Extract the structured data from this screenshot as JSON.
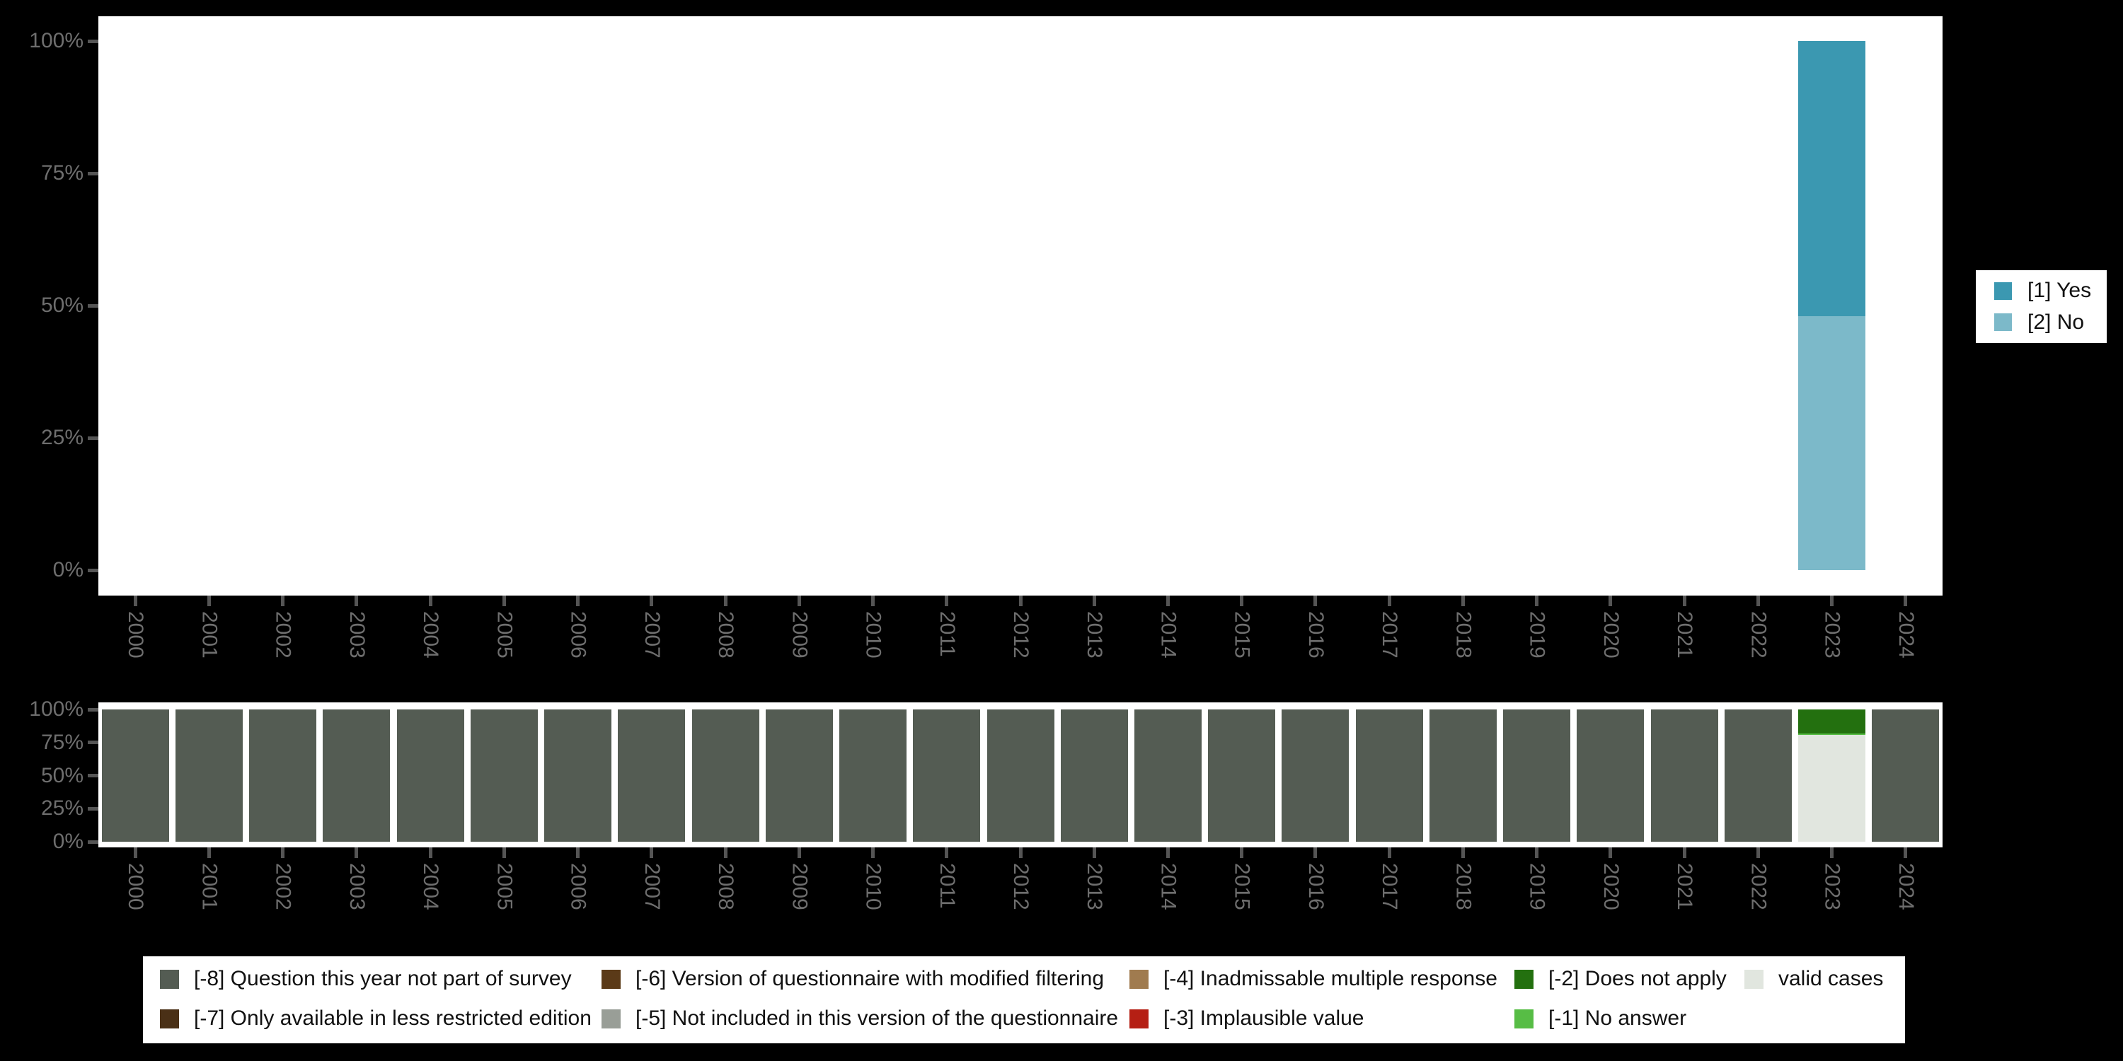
{
  "figure": {
    "background_color": "#000000",
    "plot_background_color": "#FFFFFF",
    "axis_text_color": "#6e6e6e"
  },
  "chart_data": [
    {
      "type": "bar",
      "stacked": true,
      "title": "",
      "xlabel": "",
      "ylabel": "",
      "grid": false,
      "legend_position": "right",
      "ylim": [
        0,
        100
      ],
      "ytick_labels": [
        "0%",
        "25%",
        "50%",
        "75%",
        "100%"
      ],
      "ytick_values": [
        0,
        25,
        50,
        75,
        100
      ],
      "categories": [
        "2000",
        "2001",
        "2002",
        "2003",
        "2004",
        "2005",
        "2006",
        "2007",
        "2008",
        "2009",
        "2010",
        "2011",
        "2012",
        "2013",
        "2014",
        "2015",
        "2016",
        "2017",
        "2018",
        "2019",
        "2020",
        "2021",
        "2022",
        "2023",
        "2024"
      ],
      "series": [
        {
          "name": "[1] Yes",
          "color": "#3B98B1",
          "values": [
            0,
            0,
            0,
            0,
            0,
            0,
            0,
            0,
            0,
            0,
            0,
            0,
            0,
            0,
            0,
            0,
            0,
            0,
            0,
            0,
            0,
            0,
            0,
            52,
            0
          ]
        },
        {
          "name": "[2] No",
          "color": "#7CB9C9",
          "values": [
            0,
            0,
            0,
            0,
            0,
            0,
            0,
            0,
            0,
            0,
            0,
            0,
            0,
            0,
            0,
            0,
            0,
            0,
            0,
            0,
            0,
            0,
            0,
            48,
            0
          ]
        }
      ]
    },
    {
      "type": "bar",
      "stacked": true,
      "title": "",
      "xlabel": "",
      "ylabel": "",
      "grid": false,
      "legend_position": "bottom",
      "ylim": [
        0,
        100
      ],
      "ytick_labels": [
        "0%",
        "25%",
        "50%",
        "75%",
        "100%"
      ],
      "ytick_values": [
        0,
        25,
        50,
        75,
        100
      ],
      "categories": [
        "2000",
        "2001",
        "2002",
        "2003",
        "2004",
        "2005",
        "2006",
        "2007",
        "2008",
        "2009",
        "2010",
        "2011",
        "2012",
        "2013",
        "2014",
        "2015",
        "2016",
        "2017",
        "2018",
        "2019",
        "2020",
        "2021",
        "2022",
        "2023",
        "2024"
      ],
      "series": [
        {
          "name": "[-8] Question this year not part of survey",
          "color": "#545C53",
          "values": [
            100,
            100,
            100,
            100,
            100,
            100,
            100,
            100,
            100,
            100,
            100,
            100,
            100,
            100,
            100,
            100,
            100,
            100,
            100,
            100,
            100,
            100,
            100,
            0,
            100
          ]
        },
        {
          "name": "[-2] Does not apply",
          "color": "#23700F",
          "values": [
            0,
            0,
            0,
            0,
            0,
            0,
            0,
            0,
            0,
            0,
            0,
            0,
            0,
            0,
            0,
            0,
            0,
            0,
            0,
            0,
            0,
            0,
            0,
            18,
            0
          ]
        },
        {
          "name": "[-1] No answer",
          "color": "#57BD45",
          "values": [
            0,
            0,
            0,
            0,
            0,
            0,
            0,
            0,
            0,
            0,
            0,
            0,
            0,
            0,
            0,
            0,
            0,
            0,
            0,
            0,
            0,
            0,
            0,
            1.5,
            0
          ]
        },
        {
          "name": "valid cases",
          "color": "#E1E6DF",
          "values": [
            0,
            0,
            0,
            0,
            0,
            0,
            0,
            0,
            0,
            0,
            0,
            0,
            0,
            0,
            0,
            0,
            0,
            0,
            0,
            0,
            0,
            0,
            0,
            80.5,
            0
          ]
        }
      ],
      "legend_items": [
        {
          "label": "[-8] Question this year not part of survey",
          "color": "#545C53"
        },
        {
          "label": "[-7] Only available in less restricted edition",
          "color": "#4A3016"
        },
        {
          "label": "[-6] Version of questionnaire with modified filtering",
          "color": "#5B3A18"
        },
        {
          "label": "[-5] Not included in this version of the questionnaire",
          "color": "#999E97"
        },
        {
          "label": "[-4] Inadmissable multiple response",
          "color": "#A07B4F"
        },
        {
          "label": "[-3] Implausible value",
          "color": "#B51F14"
        },
        {
          "label": "[-2] Does not apply",
          "color": "#23700F"
        },
        {
          "label": "[-1] No answer",
          "color": "#57BD45"
        },
        {
          "label": "valid cases",
          "color": "#E1E6DF"
        }
      ]
    }
  ]
}
